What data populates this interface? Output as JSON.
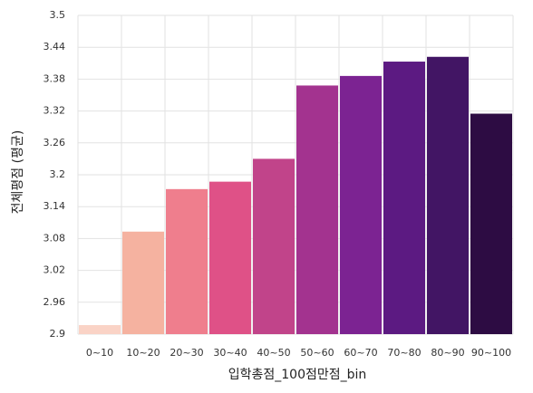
{
  "chart_data": {
    "type": "bar",
    "x_label": "입학총점_100점만점_bin",
    "y_label": "전체평점 (평균)",
    "categories": [
      "0~10",
      "10~20",
      "20~30",
      "30~40",
      "40~50",
      "50~60",
      "60~70",
      "70~80",
      "80~90",
      "90~100"
    ],
    "values": [
      2.917,
      3.093,
      3.173,
      3.187,
      3.23,
      3.368,
      3.386,
      3.413,
      3.422,
      3.315
    ],
    "colors": [
      "#fad3c6",
      "#f5b2a0",
      "#ef7e8d",
      "#df5187",
      "#c1448a",
      "#a3338f",
      "#7c2392",
      "#5c1a82",
      "#421564",
      "#2d0c43"
    ],
    "ylim": [
      2.9,
      3.5
    ],
    "yticks": [
      2.9,
      2.96,
      3.02,
      3.08,
      3.14,
      3.2,
      3.26,
      3.32,
      3.38,
      3.44,
      3.5
    ],
    "grid": true
  }
}
